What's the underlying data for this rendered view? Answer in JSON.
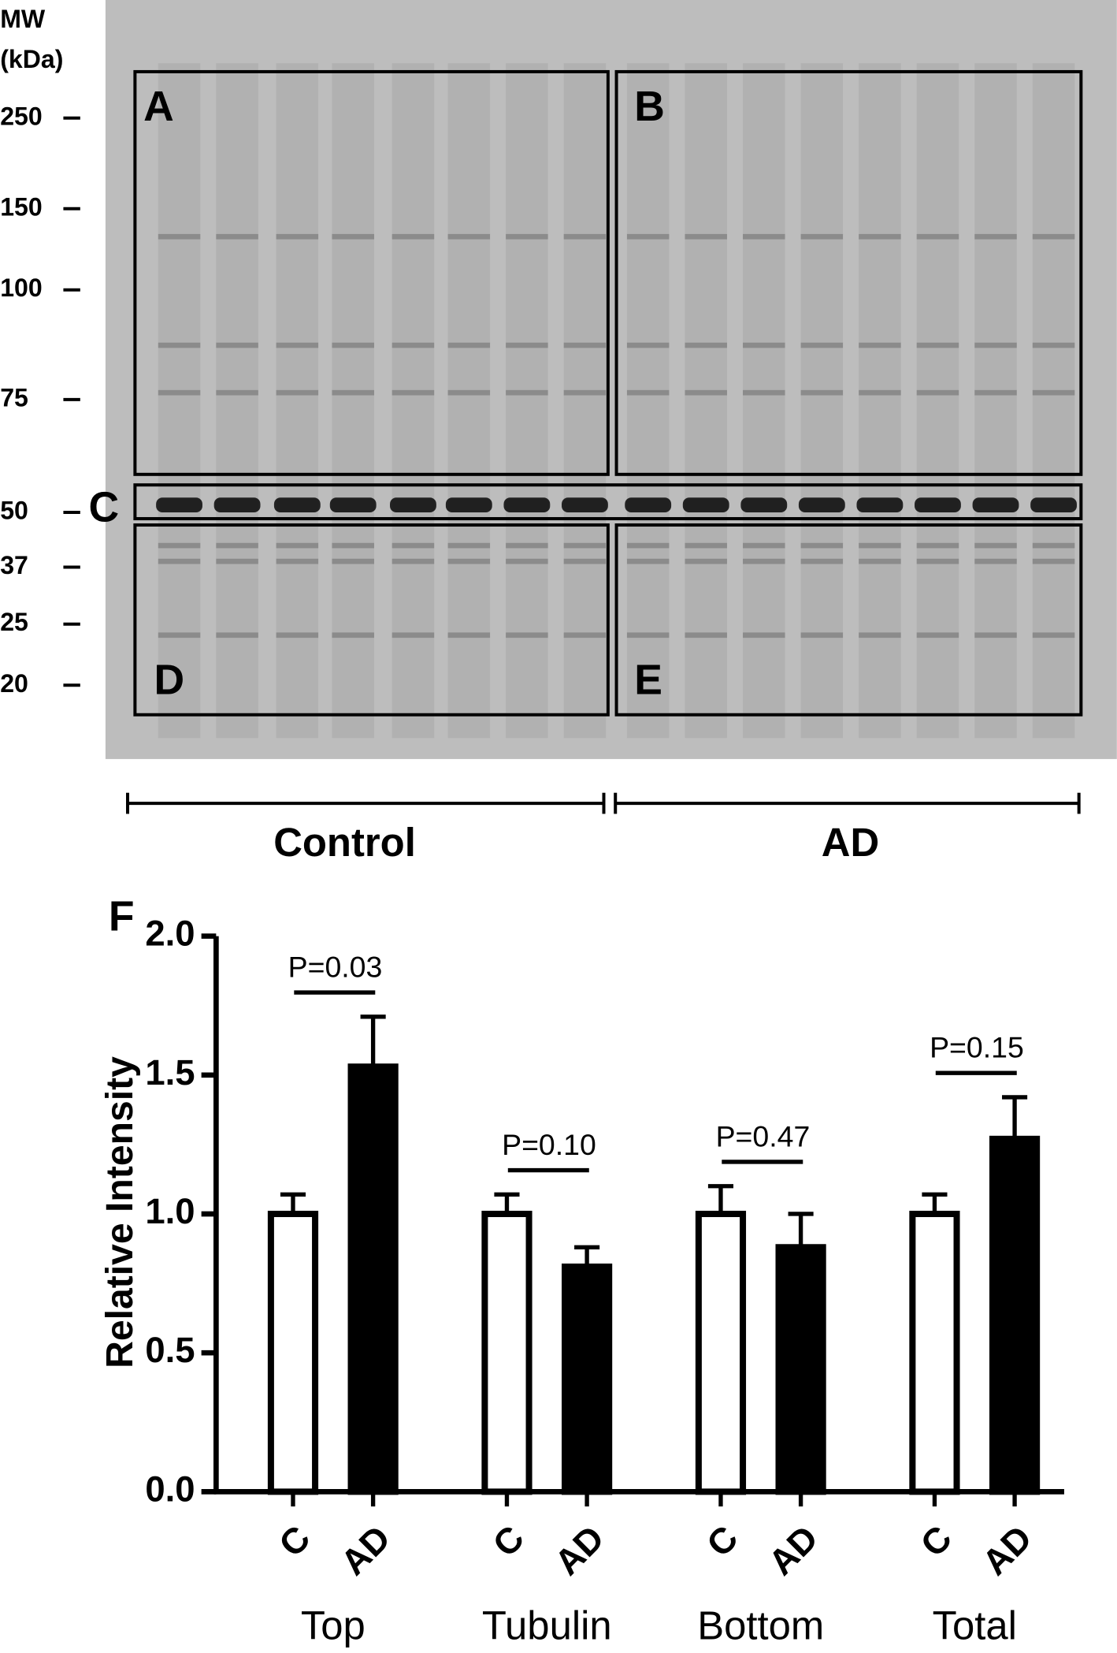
{
  "gel": {
    "mw_title": "MW",
    "mw_unit": "(kDa)",
    "mw_labels": [
      "250",
      "150",
      "100",
      "75",
      "50",
      "37",
      "25",
      "20"
    ],
    "panels": [
      "A",
      "B",
      "C",
      "D",
      "E"
    ],
    "groups": [
      "Control",
      "AD"
    ]
  },
  "chart_data": {
    "type": "bar",
    "panel": "F",
    "y_label": "Relative Intensity",
    "categories": [
      "Top",
      "Tubulin",
      "Bottom",
      "Total"
    ],
    "series": [
      {
        "name": "C",
        "color": "#ffffff",
        "values": [
          1.0,
          1.0,
          1.0,
          1.0
        ],
        "errors": [
          0.07,
          0.07,
          0.1,
          0.07
        ]
      },
      {
        "name": "AD",
        "color": "#000000",
        "values": [
          1.53,
          0.81,
          0.88,
          1.27
        ],
        "errors": [
          0.18,
          0.07,
          0.12,
          0.15
        ]
      }
    ],
    "annotations": [
      "P=0.03",
      "P=0.10",
      "P=0.47",
      "P=0.15"
    ],
    "ylim": [
      0,
      2
    ],
    "yticks": [
      {
        "value": 0,
        "label": "0.0"
      },
      0.5,
      {
        "value": 1,
        "label": "1.0"
      },
      1.5,
      {
        "value": 2,
        "label": "2.0"
      }
    ]
  }
}
